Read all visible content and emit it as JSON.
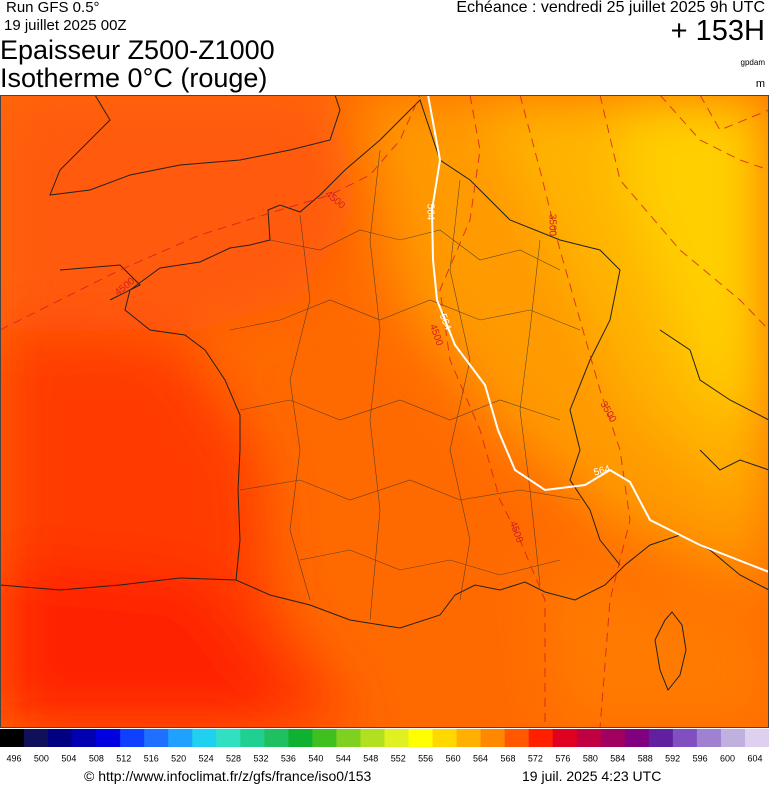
{
  "header": {
    "run": "Run GFS 0.5°",
    "run_date": "19 juillet 2025 00Z",
    "title": "Epaisseur Z500-Z1000",
    "subtitle": "Isotherme 0°C (rouge)",
    "valid": "Echéance : vendredi 25 juillet 2025 9h UTC",
    "lead": "+ 153H",
    "unit_thickness": "gpdam",
    "unit_iso": "m"
  },
  "map": {
    "contour_labels": [
      "4500",
      "4500",
      "564",
      "564",
      "4500",
      "3500",
      "3500",
      "564",
      "4500"
    ]
  },
  "legend": {
    "labels": [
      "496",
      "500",
      "504",
      "508",
      "512",
      "516",
      "520",
      "524",
      "528",
      "532",
      "536",
      "540",
      "544",
      "548",
      "552",
      "556",
      "560",
      "564",
      "568",
      "572",
      "576",
      "580",
      "584",
      "588",
      "592",
      "596",
      "600",
      "604"
    ],
    "colors": [
      "#000000",
      "#10105a",
      "#000080",
      "#0000b0",
      "#0000e0",
      "#1040ff",
      "#2070ff",
      "#20a0ff",
      "#20d0f0",
      "#30e0c0",
      "#20d090",
      "#20c060",
      "#10b030",
      "#40c020",
      "#80d020",
      "#b0e020",
      "#e0f020",
      "#ffff00",
      "#ffd800",
      "#ffb000",
      "#ff8800",
      "#ff5800",
      "#ff2000",
      "#e00020",
      "#c00040",
      "#a00060",
      "#800080",
      "#6020a0",
      "#8050c0",
      "#a080d0",
      "#c0b0e0",
      "#e0d0f0"
    ]
  },
  "footer": {
    "url": "© http://www.infoclimat.fr/z/gfs/france/iso0/153",
    "generated": "19 juil. 2025  4:23 UTC"
  }
}
